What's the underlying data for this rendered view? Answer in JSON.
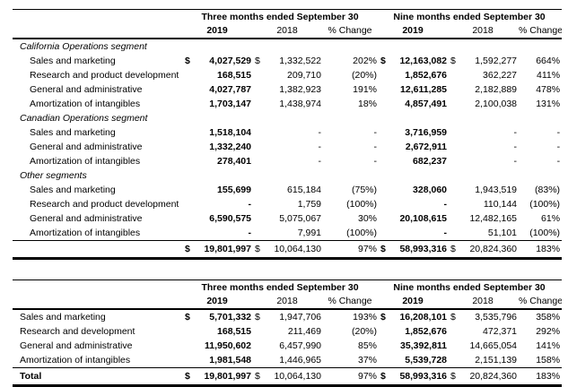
{
  "colors": {
    "background": "#ffffff",
    "text": "#000000",
    "rule": "#000000"
  },
  "tables": [
    {
      "spanners": [
        "Three months ended September 30",
        "Nine months ended September 30"
      ],
      "year_headers": [
        "2019",
        "2018",
        "% Change",
        "2019",
        "2018",
        "% Change"
      ],
      "indent": true,
      "rows": [
        {
          "type": "section",
          "label": "California Operations segment"
        },
        {
          "type": "data",
          "label": "Sales and marketing",
          "cells": [
            "$",
            "4,027,529",
            "$",
            "1,332,522",
            "202%",
            "$",
            "12,163,082",
            "$",
            "1,592,277",
            "664%"
          ]
        },
        {
          "type": "data",
          "label": "Research and product development",
          "cells": [
            "",
            "168,515",
            "",
            "209,710",
            "(20%)",
            "",
            "1,852,676",
            "",
            "362,227",
            "411%"
          ]
        },
        {
          "type": "data",
          "label": "General and administrative",
          "cells": [
            "",
            "4,027,787",
            "",
            "1,382,923",
            "191%",
            "",
            "12,611,285",
            "",
            "2,182,889",
            "478%"
          ]
        },
        {
          "type": "data",
          "label": "Amortization of intangibles",
          "cells": [
            "",
            "1,703,147",
            "",
            "1,438,974",
            "18%",
            "",
            "4,857,491",
            "",
            "2,100,038",
            "131%"
          ]
        },
        {
          "type": "section",
          "label": "Canadian Operations segment"
        },
        {
          "type": "data",
          "label": "Sales and marketing",
          "cells": [
            "",
            "1,518,104",
            "",
            "-",
            "-",
            "",
            "3,716,959",
            "",
            "-",
            "-"
          ]
        },
        {
          "type": "data",
          "label": "General and administrative",
          "cells": [
            "",
            "1,332,240",
            "",
            "-",
            "-",
            "",
            "2,672,911",
            "",
            "-",
            "-"
          ]
        },
        {
          "type": "data",
          "label": "Amortization of intangibles",
          "cells": [
            "",
            "278,401",
            "",
            "-",
            "-",
            "",
            "682,237",
            "",
            "-",
            "-"
          ]
        },
        {
          "type": "section",
          "label": "Other segments"
        },
        {
          "type": "data",
          "label": "Sales and marketing",
          "cells": [
            "",
            "155,699",
            "",
            "615,184",
            "(75%)",
            "",
            "328,060",
            "",
            "1,943,519",
            "(83%)"
          ]
        },
        {
          "type": "data",
          "label": "Research and product development",
          "cells": [
            "",
            "-",
            "",
            "1,759",
            "(100%)",
            "",
            "-",
            "",
            "110,144",
            "(100%)"
          ]
        },
        {
          "type": "data",
          "label": "General and administrative",
          "cells": [
            "",
            "6,590,575",
            "",
            "5,075,067",
            "30%",
            "",
            "20,108,615",
            "",
            "12,482,165",
            "61%"
          ]
        },
        {
          "type": "data",
          "label": "Amortization of intangibles",
          "cells": [
            "",
            "-",
            "",
            "7,991",
            "(100%)",
            "",
            "-",
            "",
            "51,101",
            "(100%)"
          ]
        },
        {
          "type": "total",
          "label": "",
          "cells": [
            "$",
            "19,801,997",
            "$",
            "10,064,130",
            "97%",
            "$",
            "58,993,316",
            "$",
            "20,824,360",
            "183%"
          ]
        }
      ]
    },
    {
      "spanners": [
        "Three months ended September 30",
        "Nine months ended September 30"
      ],
      "year_headers": [
        "2019",
        "2018",
        "% Change",
        "2019",
        "2018",
        "% Change"
      ],
      "indent": false,
      "rows": [
        {
          "type": "data",
          "label": "Sales and marketing",
          "cells": [
            "$",
            "5,701,332",
            "$",
            "1,947,706",
            "193%",
            "$",
            "16,208,101",
            "$",
            "3,535,796",
            "358%"
          ]
        },
        {
          "type": "data",
          "label": "Research and development",
          "cells": [
            "",
            "168,515",
            "",
            "211,469",
            "(20%)",
            "",
            "1,852,676",
            "",
            "472,371",
            "292%"
          ]
        },
        {
          "type": "data",
          "label": "General and administrative",
          "cells": [
            "",
            "11,950,602",
            "",
            "6,457,990",
            "85%",
            "",
            "35,392,811",
            "",
            "14,665,054",
            "141%"
          ]
        },
        {
          "type": "data",
          "label": "Amortization of intangibles",
          "cells": [
            "",
            "1,981,548",
            "",
            "1,446,965",
            "37%",
            "",
            "5,539,728",
            "",
            "2,151,139",
            "158%"
          ]
        },
        {
          "type": "total",
          "label": "Total",
          "cells": [
            "$",
            "19,801,997",
            "$",
            "10,064,130",
            "97%",
            "$",
            "58,993,316",
            "$",
            "20,824,360",
            "183%"
          ]
        }
      ]
    }
  ]
}
